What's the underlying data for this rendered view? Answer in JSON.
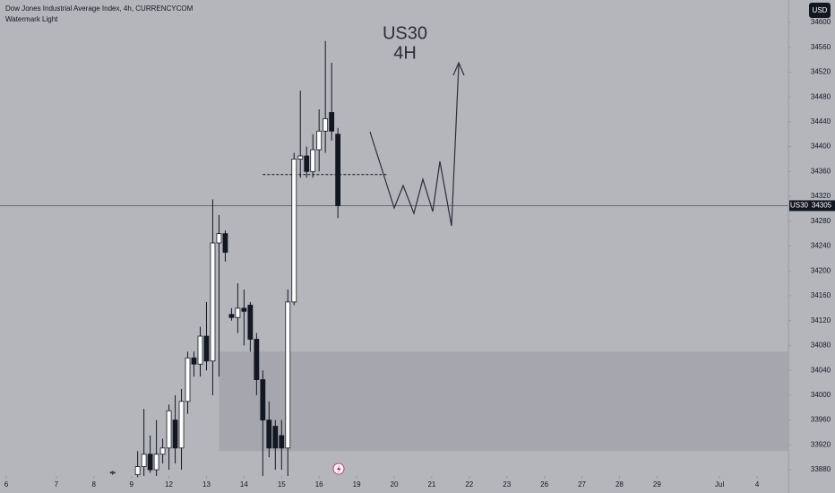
{
  "chart_data": {
    "type": "candlestick",
    "title": "Dow Jones Industrial Average Index, 4h, CURRENCYCOM",
    "subtitle": "Watermark Light",
    "annotation": [
      "US30",
      "4H"
    ],
    "currency": "USD",
    "symbol": "US30",
    "last_price": 34305,
    "up_color": "#ffffff",
    "down_color": "#131722",
    "xlim": [
      -1,
      125
    ],
    "ylim": [
      33870,
      34636
    ],
    "xticks": [
      {
        "value": 0,
        "label": "6"
      },
      {
        "value": 8,
        "label": "7"
      },
      {
        "value": 14,
        "label": "8"
      },
      {
        "value": 20,
        "label": "9"
      },
      {
        "value": 26,
        "label": "12"
      },
      {
        "value": 32,
        "label": "13"
      },
      {
        "value": 38,
        "label": "14"
      },
      {
        "value": 44,
        "label": "15"
      },
      {
        "value": 50,
        "label": "16"
      },
      {
        "value": 56,
        "label": "19"
      },
      {
        "value": 62,
        "label": "20"
      },
      {
        "value": 68,
        "label": "21"
      },
      {
        "value": 74,
        "label": "22"
      },
      {
        "value": 80,
        "label": "23"
      },
      {
        "value": 86,
        "label": "26"
      },
      {
        "value": 92,
        "label": "27"
      },
      {
        "value": 98,
        "label": "28"
      },
      {
        "value": 104,
        "label": "29"
      },
      {
        "value": 114,
        "label": "Jul"
      },
      {
        "value": 120,
        "label": "4"
      }
    ],
    "yticks": [
      33880,
      33920,
      33960,
      34000,
      34040,
      34080,
      34120,
      34160,
      34200,
      34240,
      34280,
      34320,
      34360,
      34400,
      34440,
      34480,
      34520,
      34560,
      34600
    ],
    "zone": {
      "x": 34,
      "low": 33910,
      "high": 34070
    },
    "level": {
      "x": [
        41,
        61
      ],
      "value": 34355
    },
    "candles": [
      {
        "x": 17,
        "open": 33875,
        "high": 33878,
        "low": 33872,
        "close": 33876
      },
      {
        "x": 21,
        "open": 33872,
        "high": 33910,
        "low": 33868,
        "close": 33885
      },
      {
        "x": 22,
        "open": 33885,
        "high": 33978,
        "low": 33870,
        "close": 33905
      },
      {
        "x": 23,
        "open": 33905,
        "high": 33935,
        "low": 33875,
        "close": 33880
      },
      {
        "x": 24,
        "open": 33880,
        "high": 33960,
        "low": 33870,
        "close": 33905
      },
      {
        "x": 25,
        "open": 33905,
        "high": 33930,
        "low": 33890,
        "close": 33915
      },
      {
        "x": 26,
        "open": 33915,
        "high": 33985,
        "low": 33880,
        "close": 33975
      },
      {
        "x": 27,
        "open": 33960,
        "high": 34000,
        "low": 33890,
        "close": 33915
      },
      {
        "x": 28,
        "open": 33915,
        "high": 34010,
        "low": 33880,
        "close": 33990
      },
      {
        "x": 29,
        "open": 33990,
        "high": 34070,
        "low": 33970,
        "close": 34060
      },
      {
        "x": 30,
        "open": 34060,
        "high": 34070,
        "low": 34030,
        "close": 34050
      },
      {
        "x": 31,
        "open": 34050,
        "high": 34110,
        "low": 34030,
        "close": 34095
      },
      {
        "x": 32,
        "open": 34095,
        "high": 34150,
        "low": 34040,
        "close": 34055
      },
      {
        "x": 33,
        "open": 34055,
        "high": 34315,
        "low": 34000,
        "close": 34245
      },
      {
        "x": 34,
        "open": 34245,
        "high": 34290,
        "low": 34030,
        "close": 34260
      },
      {
        "x": 35,
        "open": 34260,
        "high": 34265,
        "low": 34215,
        "close": 34230
      },
      {
        "x": 36,
        "open": 34130,
        "high": 34140,
        "low": 34120,
        "close": 34125
      },
      {
        "x": 37,
        "open": 34125,
        "high": 34180,
        "low": 34100,
        "close": 34140
      },
      {
        "x": 38,
        "open": 34140,
        "high": 34170,
        "low": 34080,
        "close": 34135
      },
      {
        "x": 39,
        "open": 34145,
        "high": 34150,
        "low": 34070,
        "close": 34090
      },
      {
        "x": 40,
        "open": 34090,
        "high": 34100,
        "low": 34000,
        "close": 34025
      },
      {
        "x": 41,
        "open": 34025,
        "high": 34040,
        "low": 33870,
        "close": 33960
      },
      {
        "x": 42,
        "open": 33960,
        "high": 33990,
        "low": 33900,
        "close": 33915
      },
      {
        "x": 43,
        "open": 33950,
        "high": 33960,
        "low": 33880,
        "close": 33915
      },
      {
        "x": 44,
        "open": 33935,
        "high": 33960,
        "low": 33880,
        "close": 33915
      },
      {
        "x": 45,
        "open": 33915,
        "high": 34170,
        "low": 33870,
        "close": 34150
      },
      {
        "x": 46,
        "open": 34150,
        "high": 34390,
        "low": 34145,
        "close": 34380
      },
      {
        "x": 47,
        "open": 34380,
        "high": 34490,
        "low": 34350,
        "close": 34385
      },
      {
        "x": 48,
        "open": 34385,
        "high": 34400,
        "low": 34350,
        "close": 34360
      },
      {
        "x": 49,
        "open": 34360,
        "high": 34420,
        "low": 34350,
        "close": 34395
      },
      {
        "x": 50,
        "open": 34395,
        "high": 34460,
        "low": 34360,
        "close": 34425
      },
      {
        "x": 51,
        "open": 34425,
        "high": 34570,
        "low": 34390,
        "close": 34445
      },
      {
        "x": 52,
        "open": 34455,
        "high": 34535,
        "low": 34410,
        "close": 34425
      },
      {
        "x": 53,
        "open": 34420,
        "high": 34430,
        "low": 34285,
        "close": 34305
      }
    ]
  }
}
